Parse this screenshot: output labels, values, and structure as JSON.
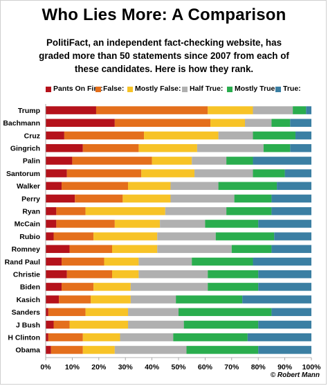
{
  "chart_data": {
    "type": "bar",
    "orientation": "horizontal",
    "stacked": true,
    "percent_stacked": true,
    "title": "Who Lies More: A Comparison",
    "subtitle": "PolitiFact,  an independent fact-checking website, has graded more than 50 statements since 2007 from each of these candidates. Here is how they rank.",
    "xlim": [
      0,
      100
    ],
    "xticks": [
      "0%",
      "10%",
      "20%",
      "30%",
      "40%",
      "50%",
      "60%",
      "70%",
      "80%",
      "90%",
      "100%"
    ],
    "grid": false,
    "legend_position": "top",
    "categories": [
      "Trump",
      "Bachmann",
      "Cruz",
      "Gingrich",
      "Palin",
      "Santorum",
      "Walker",
      "Perry",
      "Ryan",
      "McCain",
      "Rubio",
      "Romney",
      "Rand Paul",
      "Christie",
      "Biden",
      "Kasich",
      "Sanders",
      "J Bush",
      "H Clinton",
      "Obama"
    ],
    "series": [
      {
        "name": "Pants On Fire:",
        "color": "#b5121b",
        "values": [
          19,
          26,
          7,
          14,
          10,
          8,
          6,
          11,
          4,
          4,
          3,
          9,
          6,
          8,
          6,
          5,
          1,
          3,
          1,
          2
        ]
      },
      {
        "name": "False:",
        "color": "#e46f1c",
        "values": [
          42,
          36,
          30,
          21,
          30,
          28,
          25,
          18,
          11,
          22,
          15,
          16,
          16,
          17,
          12,
          12,
          14,
          6,
          13,
          12
        ]
      },
      {
        "name": "Mostly False:",
        "color": "#f7c327",
        "values": [
          17,
          13,
          28,
          22,
          15,
          20,
          16,
          18,
          30,
          17,
          24,
          17,
          13,
          10,
          14,
          15,
          16,
          22,
          14,
          12
        ]
      },
      {
        "name": "Half True:",
        "color": "#b0b0b0",
        "values": [
          15,
          10,
          13,
          25,
          13,
          22,
          18,
          24,
          23,
          17,
          22,
          28,
          20,
          26,
          29,
          17,
          19,
          21,
          20,
          27
        ]
      },
      {
        "name": "Mostly True:",
        "color": "#2aad4e",
        "values": [
          5,
          7,
          16,
          10,
          10,
          12,
          22,
          14,
          17,
          20,
          22,
          15,
          23,
          19,
          19,
          25,
          35,
          28,
          28,
          27
        ]
      },
      {
        "name": "True:",
        "color": "#3b7fa3",
        "values": [
          2,
          8,
          6,
          8,
          22,
          10,
          13,
          15,
          15,
          20,
          14,
          15,
          22,
          20,
          20,
          26,
          15,
          20,
          24,
          20
        ]
      }
    ]
  },
  "credit": "© Robert Mann"
}
